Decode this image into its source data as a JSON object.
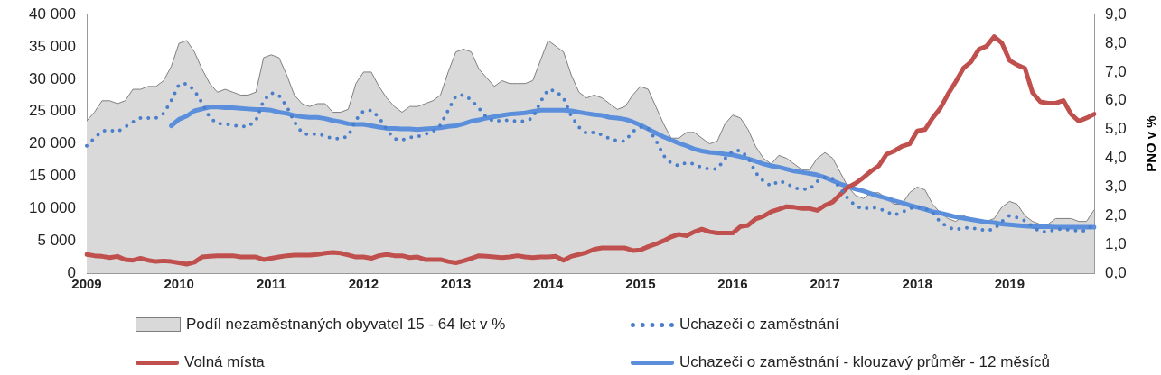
{
  "chart_data": {
    "type": "line",
    "categories": [
      "2009",
      null,
      null,
      null,
      null,
      null,
      null,
      null,
      null,
      null,
      null,
      null,
      "2010",
      null,
      null,
      null,
      null,
      null,
      null,
      null,
      null,
      null,
      null,
      null,
      "2011",
      null,
      null,
      null,
      null,
      null,
      null,
      null,
      null,
      null,
      null,
      null,
      "2012",
      null,
      null,
      null,
      null,
      null,
      null,
      null,
      null,
      null,
      null,
      null,
      "2013",
      null,
      null,
      null,
      null,
      null,
      null,
      null,
      null,
      null,
      null,
      null,
      "2014",
      null,
      null,
      null,
      null,
      null,
      null,
      null,
      null,
      null,
      null,
      null,
      "2015",
      null,
      null,
      null,
      null,
      null,
      null,
      null,
      null,
      null,
      null,
      null,
      "2016",
      null,
      null,
      null,
      null,
      null,
      null,
      null,
      null,
      null,
      null,
      null,
      "2017",
      null,
      null,
      null,
      null,
      null,
      null,
      null,
      null,
      null,
      null,
      null,
      "2018",
      null,
      null,
      null,
      null,
      null,
      null,
      null,
      null,
      null,
      null,
      null,
      "2019",
      null,
      null,
      null,
      null,
      null,
      null,
      null,
      null,
      null,
      null,
      null
    ],
    "series": [
      {
        "name": "Podíl nezaměstnaných obyvatel 15 - 64 let v %",
        "type": "area",
        "axis": "y2",
        "color": "#d9d9d9",
        "values": [
          5.3,
          5.6,
          6.0,
          6.0,
          5.9,
          6.0,
          6.4,
          6.4,
          6.5,
          6.5,
          6.7,
          7.2,
          8.0,
          8.1,
          7.7,
          7.1,
          6.6,
          6.3,
          6.4,
          6.3,
          6.2,
          6.2,
          6.3,
          7.5,
          7.6,
          7.5,
          6.9,
          6.2,
          5.9,
          5.8,
          5.9,
          5.9,
          5.6,
          5.6,
          5.7,
          6.6,
          7.0,
          7.0,
          6.5,
          6.1,
          5.8,
          5.6,
          5.8,
          5.8,
          5.9,
          6.0,
          6.2,
          7.0,
          7.7,
          7.8,
          7.7,
          7.1,
          6.8,
          6.5,
          6.7,
          6.6,
          6.6,
          6.6,
          6.7,
          7.4,
          8.1,
          7.9,
          7.7,
          6.9,
          6.3,
          6.1,
          6.2,
          6.1,
          5.9,
          5.7,
          5.8,
          6.2,
          6.5,
          6.4,
          5.8,
          5.2,
          4.7,
          4.7,
          4.9,
          4.9,
          4.7,
          4.5,
          4.6,
          5.2,
          5.5,
          5.4,
          5.0,
          4.4,
          4.0,
          3.8,
          4.1,
          4.0,
          3.8,
          3.6,
          3.6,
          4.0,
          4.2,
          4.0,
          3.5,
          3.0,
          2.7,
          2.6,
          2.8,
          2.8,
          2.6,
          2.4,
          2.4,
          2.8,
          3.0,
          2.9,
          2.4,
          2.1,
          1.9,
          1.8,
          2.0,
          1.9,
          1.8,
          1.8,
          1.9,
          2.3,
          2.5,
          2.4,
          2.0,
          1.8,
          1.7,
          1.7,
          1.9,
          1.9,
          1.9,
          1.8,
          1.8,
          2.2
        ]
      },
      {
        "name": "Uchazeči o zaměstnání",
        "line_style": "dotted",
        "color": "#4a7ecb",
        "values": [
          19700,
          20900,
          22000,
          22100,
          21900,
          22600,
          23400,
          24000,
          24000,
          24000,
          24700,
          26700,
          29200,
          29300,
          28300,
          26300,
          24100,
          23100,
          23100,
          22900,
          22700,
          22700,
          23600,
          26700,
          27900,
          27500,
          25800,
          23400,
          21700,
          21400,
          21600,
          21200,
          20800,
          20800,
          21200,
          23700,
          25100,
          25200,
          24100,
          22200,
          20800,
          20600,
          21000,
          21100,
          21500,
          21900,
          22900,
          25200,
          27400,
          27600,
          26800,
          25500,
          24100,
          23400,
          23700,
          23600,
          23500,
          23500,
          24000,
          26500,
          28400,
          28200,
          27100,
          24300,
          22600,
          21600,
          21800,
          21400,
          20800,
          20500,
          20400,
          21900,
          22600,
          22400,
          20600,
          18200,
          17000,
          16600,
          17100,
          16900,
          16300,
          16100,
          16100,
          17700,
          18900,
          19000,
          17900,
          15500,
          14200,
          13500,
          14300,
          13900,
          13200,
          13000,
          13000,
          14200,
          14800,
          14600,
          13100,
          11500,
          10400,
          9900,
          10200,
          10000,
          9500,
          9000,
          9400,
          10000,
          10300,
          10000,
          9400,
          7900,
          7100,
          6700,
          7000,
          7000,
          6800,
          6600,
          6800,
          8000,
          8900,
          8600,
          8100,
          7200,
          6400,
          6400,
          6800,
          6800,
          6700,
          6500,
          6600,
          7700
        ]
      },
      {
        "name": "Volná místa",
        "line_style": "solid",
        "color": "#c0504d",
        "values": [
          2900,
          2700,
          2600,
          2400,
          2600,
          2100,
          2000,
          2300,
          2000,
          1800,
          1900,
          1800,
          1600,
          1400,
          1700,
          2500,
          2600,
          2700,
          2700,
          2700,
          2500,
          2500,
          2500,
          2100,
          2300,
          2500,
          2700,
          2800,
          2800,
          2800,
          2900,
          3100,
          3200,
          3100,
          2800,
          2500,
          2500,
          2300,
          2700,
          2900,
          2700,
          2700,
          2400,
          2500,
          2100,
          2100,
          2100,
          1800,
          1600,
          1900,
          2300,
          2700,
          2600,
          2500,
          2400,
          2500,
          2700,
          2500,
          2400,
          2500,
          2500,
          2600,
          2000,
          2600,
          2900,
          3200,
          3700,
          3900,
          3900,
          3900,
          3900,
          3500,
          3600,
          4100,
          4500,
          5000,
          5600,
          6000,
          5800,
          6400,
          6800,
          6400,
          6200,
          6200,
          6200,
          7200,
          7400,
          8400,
          8800,
          9500,
          9900,
          10300,
          10200,
          10000,
          10000,
          9700,
          10500,
          11000,
          12200,
          13300,
          13900,
          14800,
          15800,
          16600,
          18400,
          18900,
          19600,
          20000,
          22000,
          22200,
          24000,
          25500,
          27700,
          29600,
          31700,
          32700,
          34600,
          35100,
          36600,
          35600,
          32900,
          32200,
          31700,
          27900,
          26500,
          26300,
          26300,
          26700,
          24600,
          23500,
          24000,
          24600
        ]
      },
      {
        "name": "Uchazeči o zaměstnání - klouzavý průměr - 12 měsíců",
        "line_style": "solid",
        "color": "#5b8fdb",
        "values": [
          null,
          null,
          null,
          null,
          null,
          null,
          null,
          null,
          null,
          null,
          null,
          22800,
          23800,
          24300,
          25100,
          25400,
          25700,
          25700,
          25600,
          25600,
          25500,
          25400,
          25300,
          25300,
          25200,
          24900,
          24700,
          24400,
          24200,
          24100,
          24100,
          23900,
          23600,
          23400,
          23100,
          23000,
          23000,
          22800,
          22600,
          22400,
          22400,
          22300,
          22300,
          22200,
          22300,
          22400,
          22500,
          22700,
          22800,
          23100,
          23500,
          23700,
          24000,
          24200,
          24400,
          24600,
          24700,
          24800,
          25000,
          25200,
          25200,
          25200,
          25200,
          25100,
          24900,
          24700,
          24500,
          24400,
          24100,
          24000,
          23800,
          23400,
          22900,
          22300,
          21700,
          21100,
          20600,
          20100,
          19700,
          19200,
          18900,
          18700,
          18600,
          18400,
          18300,
          18000,
          17700,
          17300,
          16900,
          16600,
          16400,
          16100,
          15800,
          15600,
          15400,
          15200,
          14800,
          14300,
          13800,
          13400,
          13000,
          12700,
          12300,
          11900,
          11600,
          11200,
          10900,
          10500,
          10200,
          9900,
          9500,
          9300,
          9000,
          8700,
          8500,
          8300,
          8100,
          7900,
          7800,
          7600,
          7500,
          7400,
          7300,
          7200,
          7200,
          7200,
          7100,
          7100,
          7100,
          7100,
          7100,
          7100
        ]
      }
    ],
    "ylim": [
      0,
      40000
    ],
    "yticks": [
      {
        "value": 0,
        "label": "0"
      },
      {
        "value": 5000,
        "label": "5 000"
      },
      {
        "value": 10000,
        "label": "10 000"
      },
      {
        "value": 15000,
        "label": "15 000"
      },
      {
        "value": 20000,
        "label": "20 000"
      },
      {
        "value": 25000,
        "label": "25 000"
      },
      {
        "value": 30000,
        "label": "30 000"
      },
      {
        "value": 35000,
        "label": "35 000"
      },
      {
        "value": 40000,
        "label": "40 000"
      }
    ],
    "y2lim": [
      0,
      9
    ],
    "y2ticks": [
      {
        "value": 0,
        "label": "0,0"
      },
      {
        "value": 1,
        "label": "1,0"
      },
      {
        "value": 2,
        "label": "2,0"
      },
      {
        "value": 3,
        "label": "3,0"
      },
      {
        "value": 4,
        "label": "4,0"
      },
      {
        "value": 5,
        "label": "5,0"
      },
      {
        "value": 6,
        "label": "6,0"
      },
      {
        "value": 7,
        "label": "7,0"
      },
      {
        "value": 8,
        "label": "8,0"
      },
      {
        "value": 9,
        "label": "9,0"
      }
    ],
    "y2label": "PNO v %",
    "marker": "none",
    "grid": false,
    "legend": "bottom"
  }
}
